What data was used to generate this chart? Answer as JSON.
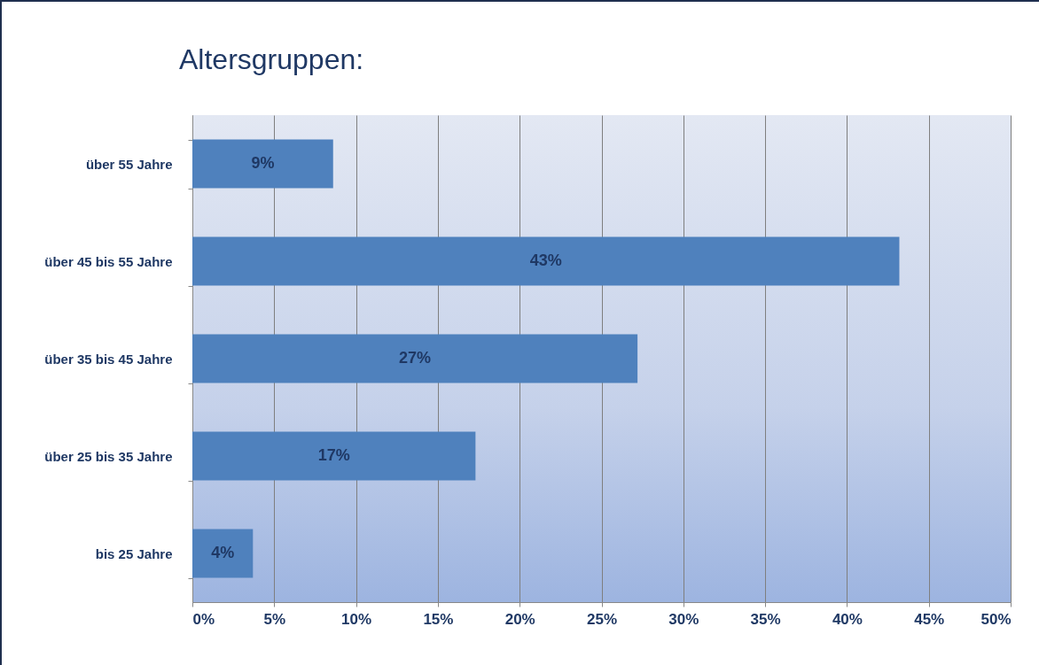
{
  "chart_data": {
    "type": "bar",
    "orientation": "horizontal",
    "title": "Altersgruppen:",
    "categories": [
      "über 55 Jahre",
      "über 45 bis 55 Jahre",
      "über 35 bis 45 Jahre",
      "über 25 bis 35 Jahre",
      "bis 25 Jahre"
    ],
    "values": [
      8.6,
      43.2,
      27.2,
      17.3,
      3.7
    ],
    "value_labels": [
      "9%",
      "43%",
      "27%",
      "17%",
      "4%"
    ],
    "color": "#4f81bd",
    "grid": "x",
    "xlim": [
      0,
      50
    ],
    "xticks": [
      {
        "value": 0,
        "label": "0%"
      },
      {
        "value": 5,
        "label": "5%"
      },
      {
        "value": 10,
        "label": "10%"
      },
      {
        "value": 15,
        "label": "15%"
      },
      {
        "value": 20,
        "label": "20%"
      },
      {
        "value": 25,
        "label": "25%"
      },
      {
        "value": 30,
        "label": "30%"
      },
      {
        "value": 35,
        "label": "35%"
      },
      {
        "value": 40,
        "label": "40%"
      },
      {
        "value": 45,
        "label": "45%"
      },
      {
        "value": 50,
        "label": "50%"
      }
    ]
  }
}
